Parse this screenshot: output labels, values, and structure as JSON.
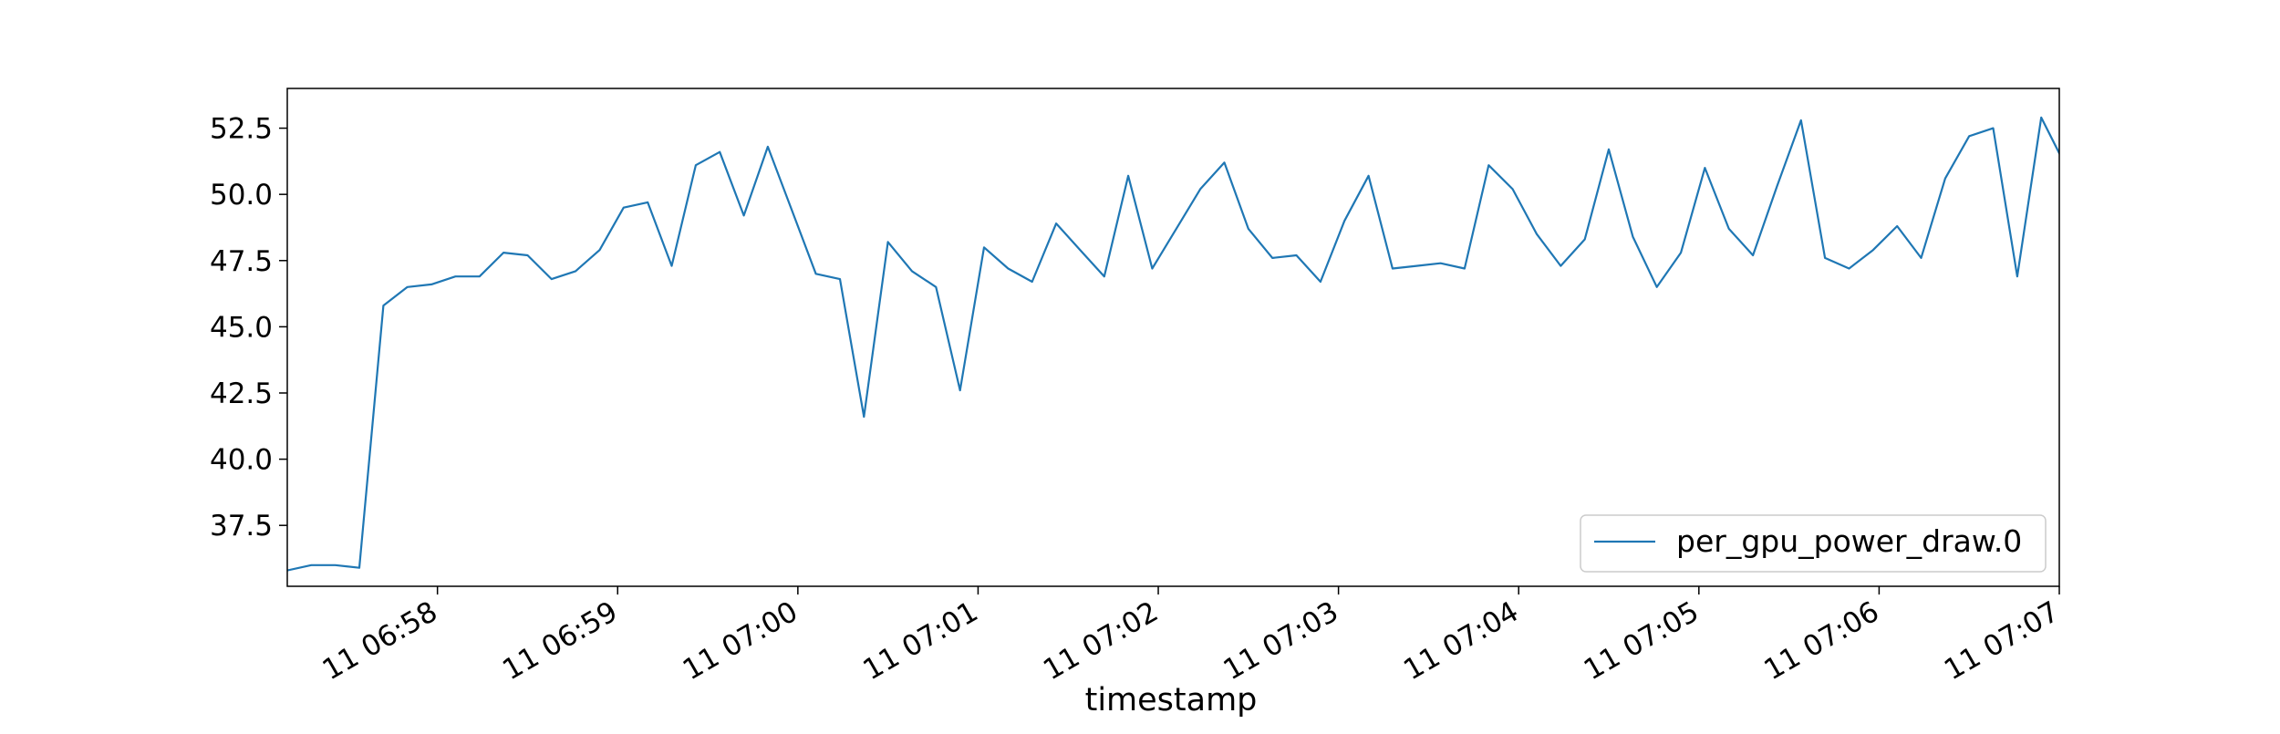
{
  "chart_data": {
    "type": "line",
    "title": "",
    "xlabel": "timestamp",
    "ylabel": "",
    "grid": false,
    "legend_position": "lower-right",
    "x_tick_labels": [
      "11 06:58",
      "11 06:59",
      "11 07:00",
      "11 07:01",
      "11 07:02",
      "11 07:03",
      "11 07:04",
      "11 07:05",
      "11 07:06",
      "11 07:07"
    ],
    "x_tick_seconds": [
      50,
      110,
      170,
      230,
      290,
      350,
      410,
      470,
      530,
      590
    ],
    "x_range_seconds": [
      0,
      590
    ],
    "ylim": [
      35.2,
      54.0
    ],
    "y_ticks": [
      37.5,
      40.0,
      42.5,
      45.0,
      47.5,
      50.0,
      52.5
    ],
    "y_tick_labels": [
      "37.5",
      "40.0",
      "42.5",
      "45.0",
      "47.5",
      "50.0",
      "52.5"
    ],
    "series": [
      {
        "name": "per_gpu_power_draw.0",
        "color": "#1f77b4",
        "x_seconds": [
          0,
          8,
          16,
          24,
          32,
          40,
          48,
          56,
          64,
          72,
          80,
          88,
          96,
          104,
          112,
          120,
          128,
          136,
          144,
          152,
          160,
          168,
          176,
          184,
          192,
          200,
          208,
          216,
          224,
          232,
          240,
          248,
          256,
          264,
          272,
          280,
          288,
          296,
          304,
          312,
          320,
          328,
          336,
          344,
          352,
          360,
          368,
          376,
          384,
          392,
          400,
          408,
          416,
          424,
          432,
          440,
          448,
          456,
          464,
          472,
          480,
          488,
          496,
          504,
          512,
          520,
          528,
          536,
          544,
          552,
          560,
          568,
          576,
          584,
          592
        ],
        "values": [
          35.8,
          36.0,
          36.0,
          35.9,
          45.8,
          46.5,
          46.6,
          46.9,
          46.9,
          47.8,
          47.7,
          46.8,
          47.1,
          47.9,
          49.5,
          49.7,
          47.3,
          51.1,
          51.6,
          49.2,
          51.8,
          49.4,
          47.0,
          46.8,
          41.6,
          48.2,
          47.1,
          46.5,
          42.6,
          48.0,
          47.2,
          46.7,
          48.9,
          47.9,
          46.9,
          50.7,
          47.2,
          48.7,
          50.2,
          51.2,
          48.7,
          47.6,
          47.7,
          46.7,
          49.0,
          50.7,
          47.2,
          47.3,
          47.4,
          47.2,
          51.1,
          50.2,
          48.5,
          47.3,
          48.3,
          51.7,
          48.4,
          46.5,
          47.8,
          51.0,
          48.7,
          47.7,
          50.3,
          52.8,
          47.6,
          47.2,
          47.9,
          48.8,
          47.6,
          50.6,
          52.2,
          52.5,
          46.9,
          52.9,
          51.1
        ]
      }
    ]
  }
}
